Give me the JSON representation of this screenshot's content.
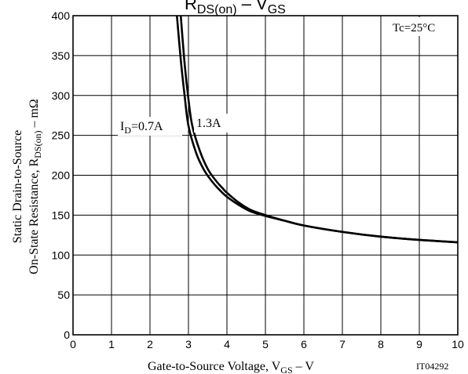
{
  "chart_data": {
    "type": "line",
    "title": {
      "main": "R",
      "sub": "DS(on)",
      "mid": " – V",
      "sub2": "GS"
    },
    "xlabel": {
      "main": "Gate-to-Source Voltage, V",
      "sub": "GS",
      "tail": " – V"
    },
    "ylabel": {
      "line1": "Static Drain-to-Source",
      "line2_main": "On-State Resistance, R",
      "line2_sub": "DS(on)",
      "line2_tail": " – mΩ"
    },
    "xlim": [
      0,
      10
    ],
    "ylim": [
      0,
      400
    ],
    "x_ticks": [
      0,
      1,
      2,
      3,
      4,
      5,
      6,
      7,
      8,
      9,
      10
    ],
    "y_ticks": [
      0,
      50,
      100,
      150,
      200,
      250,
      300,
      350,
      400
    ],
    "grid": true,
    "annotations": {
      "condition": "Tc=25°C",
      "code": "IT04292",
      "series_label_1": {
        "main": "I",
        "sub": "D",
        "tail": "=0.7A"
      },
      "series_label_2": "1.3A"
    },
    "series": [
      {
        "name": "ID=0.7A",
        "x": [
          2.7,
          2.8,
          2.9,
          3.0,
          3.2,
          3.4,
          3.6,
          3.8,
          4.0,
          4.3,
          4.6,
          5.0,
          5.5,
          6.0,
          7.0,
          8.0,
          9.0,
          10.0
        ],
        "y": [
          400,
          345,
          300,
          262,
          228,
          207,
          193,
          182,
          173,
          163,
          155,
          149,
          143,
          137,
          129,
          123,
          119,
          116
        ]
      },
      {
        "name": "ID=1.3A",
        "x": [
          2.8,
          2.9,
          3.0,
          3.1,
          3.3,
          3.5,
          3.7,
          3.9,
          4.0,
          4.3,
          4.6,
          5.0,
          5.5,
          6.0,
          7.0,
          8.0,
          9.0,
          10.0
        ],
        "y": [
          400,
          340,
          295,
          262,
          230,
          208,
          194,
          183,
          178,
          166,
          157,
          150,
          143,
          137,
          129,
          123,
          119,
          116
        ]
      }
    ]
  }
}
